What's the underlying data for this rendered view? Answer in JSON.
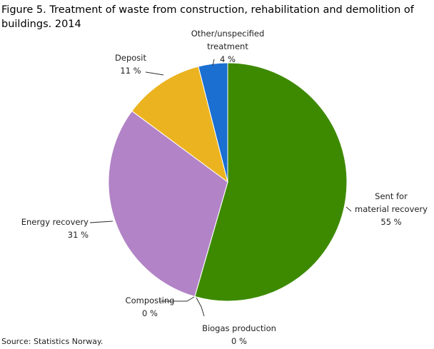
{
  "chart_data": {
    "type": "pie",
    "title": "Figure 5. Treatment of waste from construction, rehabilitation and demolition of buildings. 2014",
    "categories": [
      "Sent for\nmaterial recovery",
      "Biogas production",
      "Composting",
      "Energy recovery",
      "Deposit",
      "Other/unspecified\ntreatment"
    ],
    "values": [
      55,
      0,
      0,
      31,
      11,
      4
    ],
    "value_labels": [
      "55 %",
      "0 %",
      "0 %",
      "31 %",
      "11 %",
      "4 %"
    ],
    "colors": [
      "#3d8a00",
      null,
      null,
      "#b283c6",
      "#ebb31f",
      "#1a6fd1"
    ],
    "source": "Source: Statistics Norway."
  }
}
